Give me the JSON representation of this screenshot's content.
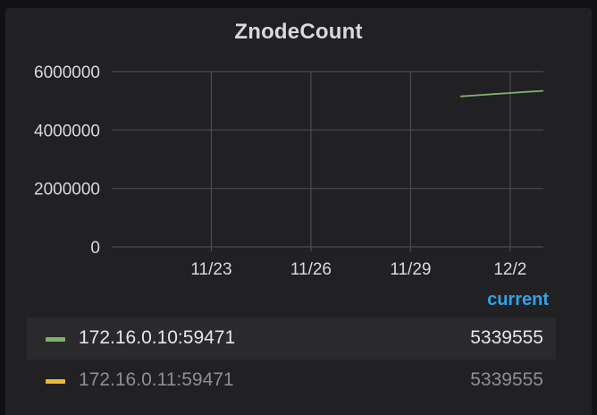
{
  "panel": {
    "title": "ZnodeCount"
  },
  "chart_data": {
    "type": "line",
    "title": "ZnodeCount",
    "xlabel": "",
    "ylabel": "",
    "xlim": [
      "2023-11-20",
      "2023-12-03"
    ],
    "ylim": [
      0,
      6000000
    ],
    "x_ticks": [
      {
        "label": "11/23",
        "date": "2023-11-23"
      },
      {
        "label": "11/26",
        "date": "2023-11-26"
      },
      {
        "label": "11/29",
        "date": "2023-11-29"
      },
      {
        "label": "12/2",
        "date": "2023-12-02"
      }
    ],
    "y_ticks": [
      {
        "label": "0",
        "value": 0
      },
      {
        "label": "2000000",
        "value": 2000000
      },
      {
        "label": "4000000",
        "value": 4000000
      },
      {
        "label": "6000000",
        "value": 6000000
      }
    ],
    "grid": true,
    "legend": "bottom",
    "series": [
      {
        "name": "172.16.0.10:59471",
        "color": "#7eb26d",
        "current": "5339555",
        "x": [
          "2023-11-30T12:00",
          "2023-12-01T00:00",
          "2023-12-01T12:00",
          "2023-12-02T00:00",
          "2023-12-02T12:00",
          "2023-12-03T00:00"
        ],
        "y": [
          5150000,
          5190000,
          5230000,
          5265000,
          5305000,
          5339555
        ]
      },
      {
        "name": "172.16.0.11:59471",
        "color": "#eab839",
        "current": "5339555",
        "x": [],
        "y": []
      }
    ]
  },
  "legend": {
    "header": "current"
  }
}
